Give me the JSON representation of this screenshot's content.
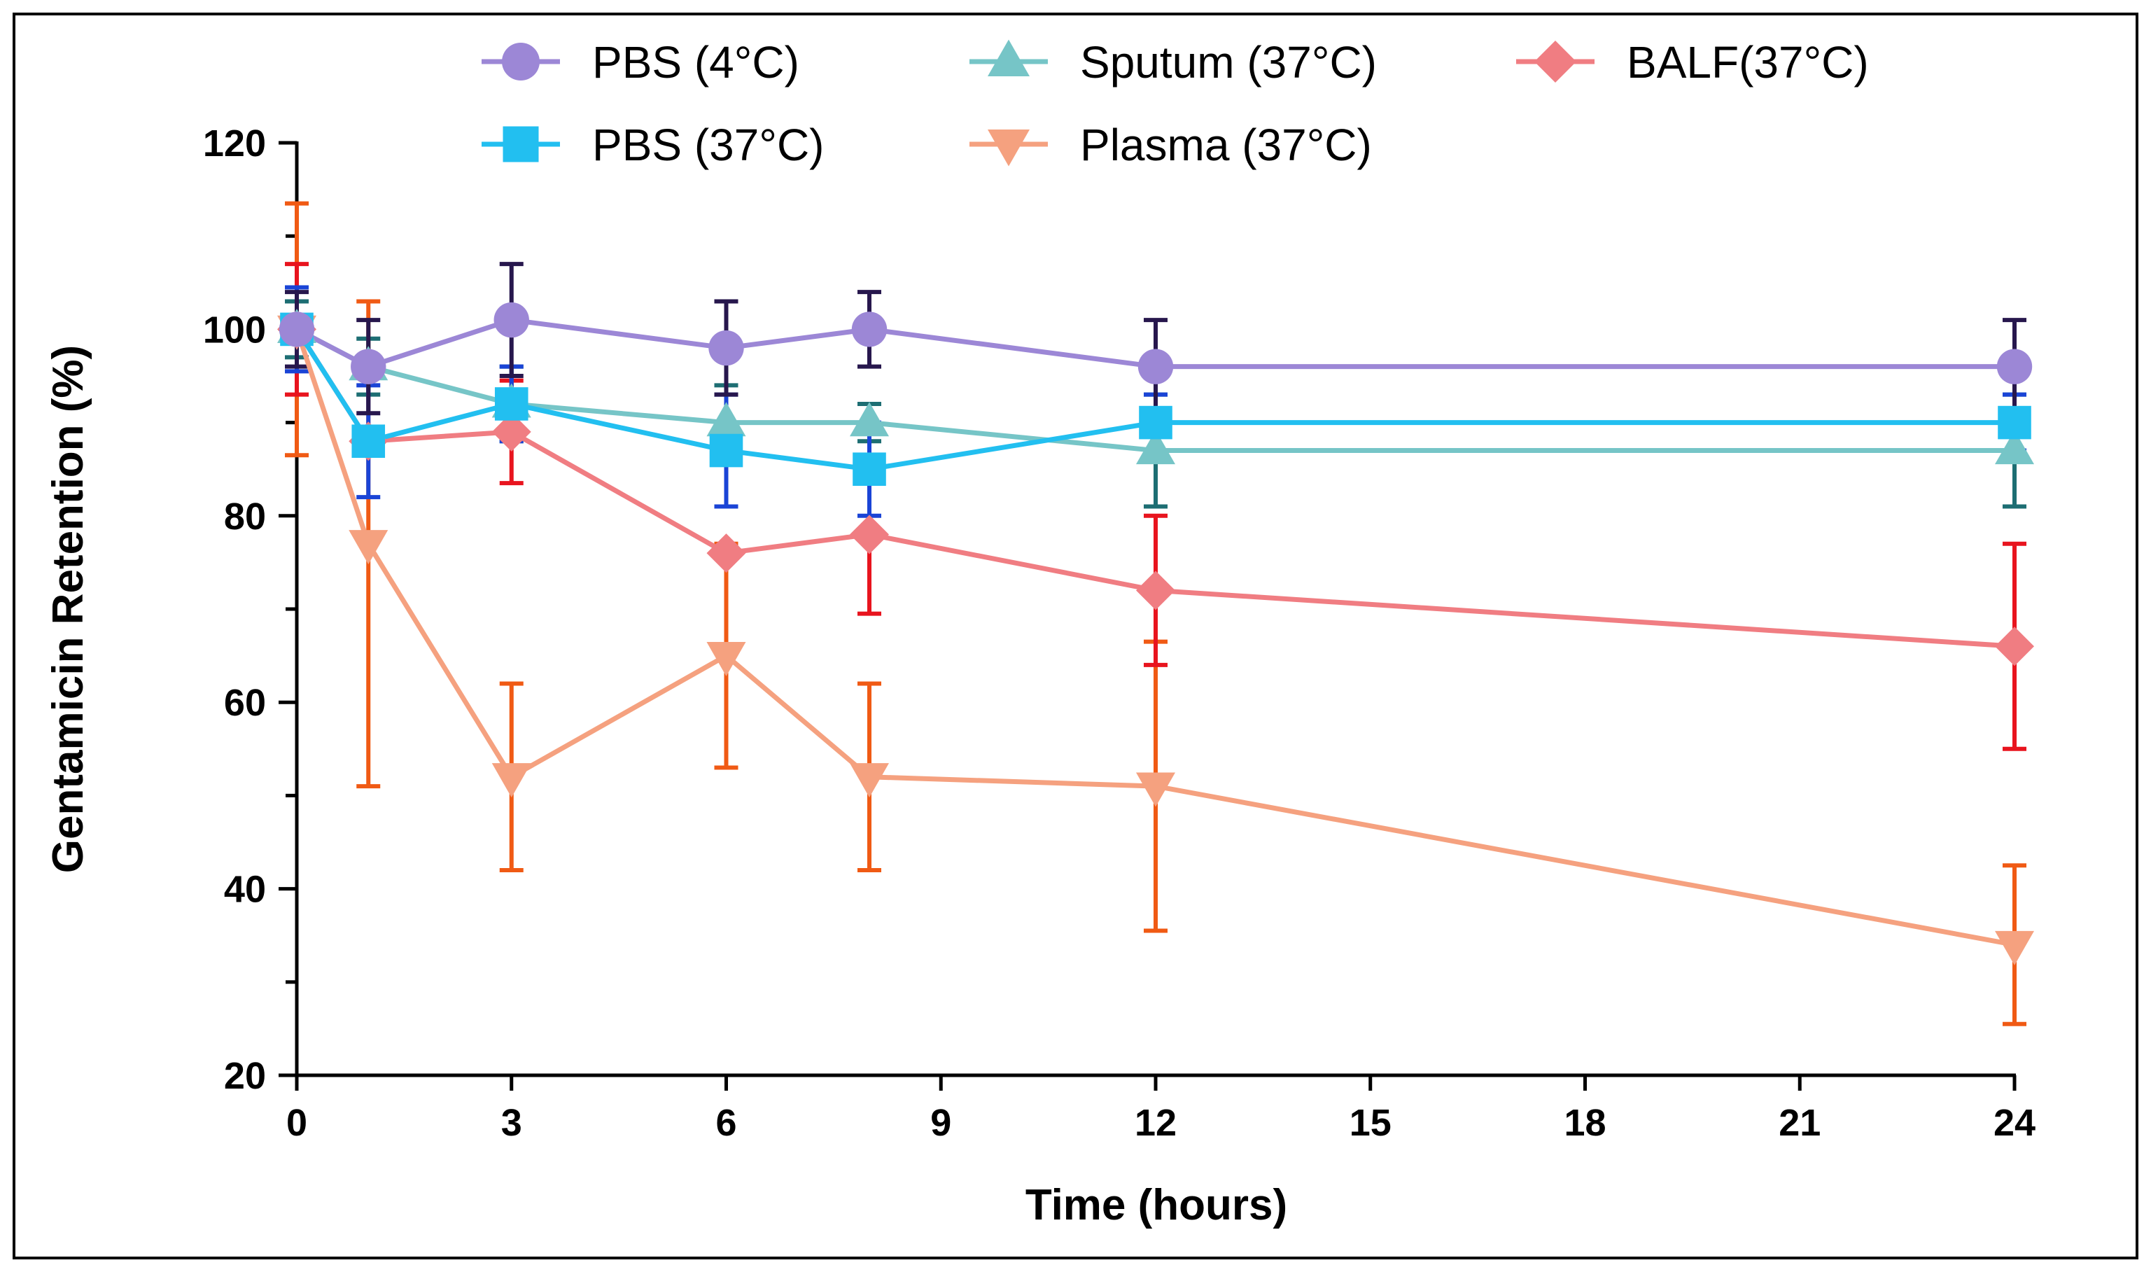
{
  "chart_data": {
    "type": "line",
    "title": "",
    "xlabel": "Time (hours)",
    "ylabel": "Gentamicin Retention (%)",
    "xlim": [
      0,
      24
    ],
    "ylim": [
      20,
      120
    ],
    "xticks": [
      0,
      3,
      6,
      9,
      12,
      15,
      18,
      21,
      24
    ],
    "yticks": [
      20,
      40,
      60,
      80,
      100,
      120
    ],
    "grid": false,
    "legend": "top",
    "x": [
      0,
      1,
      3,
      6,
      8,
      12,
      24
    ],
    "series": [
      {
        "name": "PBS (4°C)",
        "color": "#9C87D6",
        "error_color": "#27174D",
        "marker": "circle",
        "values": [
          100,
          96,
          101,
          98,
          100,
          96,
          96
        ],
        "errors": [
          4,
          5,
          6,
          5,
          4,
          5,
          5
        ]
      },
      {
        "name": "Sputum (37°C)",
        "color": "#76C5C7",
        "error_color": "#1D6E73",
        "marker": "triangle-up",
        "values": [
          100,
          96,
          92,
          90,
          90,
          87,
          87
        ],
        "errors": [
          3,
          3,
          4,
          4,
          2,
          6,
          6
        ]
      },
      {
        "name": "BALF(37°C)",
        "color": "#F07D82",
        "error_color": "#E8141E",
        "marker": "diamond",
        "values": [
          100,
          88,
          89,
          76,
          78,
          72,
          66
        ],
        "errors": [
          7,
          0,
          5.5,
          0,
          8.5,
          8,
          11
        ]
      },
      {
        "name": "PBS (37°C)",
        "color": "#22BFF0",
        "error_color": "#1A44D6",
        "marker": "square",
        "values": [
          100,
          88,
          92,
          87,
          85,
          90,
          90
        ],
        "errors": [
          4.5,
          6,
          4,
          6,
          5,
          3,
          3
        ]
      },
      {
        "name": "Plasma (37°C)",
        "color": "#F5A17F",
        "error_color": "#F05A14",
        "marker": "triangle-down",
        "values": [
          100,
          77,
          52,
          65,
          52,
          51,
          34
        ],
        "errors": [
          13.5,
          26,
          10,
          12,
          10,
          15.5,
          8.5
        ]
      }
    ]
  }
}
